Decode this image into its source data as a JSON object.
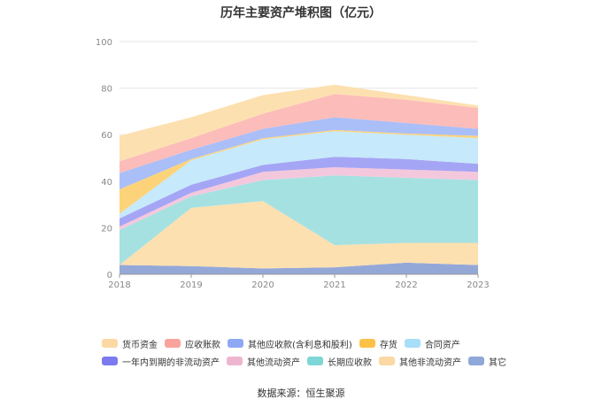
{
  "chart_data": {
    "type": "area",
    "stacked": true,
    "title": "历年主要资产堆积图（亿元）",
    "source": "数据来源：恒生聚源",
    "categories": [
      "2018",
      "2019",
      "2020",
      "2021",
      "2022",
      "2023"
    ],
    "ylim": [
      0,
      100
    ],
    "yticks": [
      "0",
      "20",
      "40",
      "60",
      "80",
      "100"
    ],
    "grid": true,
    "legend_position": "bottom",
    "series": [
      {
        "name": "其它",
        "color": "#94a8d8",
        "values": [
          4,
          3.5,
          2.5,
          3,
          5,
          4
        ]
      },
      {
        "name": "其他非流动资产",
        "color": "#fde0b0",
        "values": [
          0,
          25,
          29,
          9.5,
          8.5,
          9.5
        ]
      },
      {
        "name": "长期应收款",
        "color": "#a6e1e2",
        "values": [
          15,
          5,
          9,
          30,
          28,
          27
        ]
      },
      {
        "name": "其他流动资产",
        "color": "#f4c8dc",
        "values": [
          1.5,
          1.5,
          3.5,
          3.5,
          3.5,
          3.5
        ]
      },
      {
        "name": "一年内到期的非流动资产",
        "color": "#a5a5f5",
        "values": [
          3.5,
          3.5,
          3,
          4.5,
          4.5,
          3.5
        ]
      },
      {
        "name": "合同资产",
        "color": "#c6e9fb",
        "values": [
          2,
          10.5,
          11,
          11,
          10.5,
          11
        ]
      },
      {
        "name": "存货",
        "color": "#fdd37a",
        "values": [
          10.5,
          0.5,
          0.5,
          0.5,
          0.5,
          1
        ]
      },
      {
        "name": "其他应收款(含利息和股利)",
        "color": "#aabef8",
        "values": [
          7,
          4,
          4,
          5.5,
          4.5,
          3
        ]
      },
      {
        "name": "应收账款",
        "color": "#fcbcb9",
        "values": [
          5,
          5,
          6.5,
          10,
          10,
          9
        ]
      },
      {
        "name": "货币资金",
        "color": "#fde0b0",
        "values": [
          11,
          9,
          8,
          4,
          2,
          1
        ]
      }
    ],
    "legend": [
      [
        {
          "name": "货币资金",
          "color": "#fcd8a4"
        },
        {
          "name": "应收账款",
          "color": "#f9a39d"
        },
        {
          "name": "其他应收款(含利息和股利)",
          "color": "#8fa8f4"
        },
        {
          "name": "存货",
          "color": "#fbc247"
        },
        {
          "name": "合同资产",
          "color": "#a8def8"
        }
      ],
      [
        {
          "name": "一年内到期的非流动资产",
          "color": "#7b7bef"
        },
        {
          "name": "其他流动资产",
          "color": "#eeb5d0"
        },
        {
          "name": "长期应收款",
          "color": "#7fd6d6"
        },
        {
          "name": "其他非流动资产",
          "color": "#fcd8a4"
        },
        {
          "name": "其它",
          "color": "#8fa8d8"
        }
      ]
    ]
  }
}
